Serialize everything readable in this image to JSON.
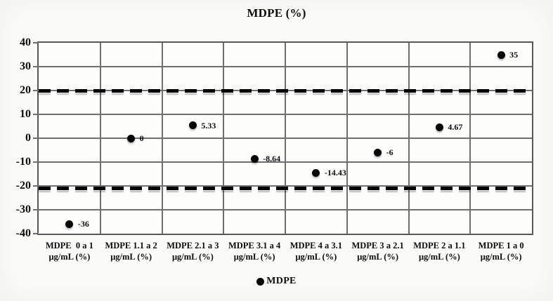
{
  "chart_data": {
    "type": "scatter",
    "title": "MDPE (%)",
    "legend": "MDPE",
    "legend_position": "bottom-center",
    "grid": true,
    "xlabel": "",
    "ylabel": "",
    "ylim": [
      -40,
      40
    ],
    "ytick_step": 10,
    "yticks": [
      40,
      30,
      20,
      10,
      0,
      -10,
      -20,
      -30,
      -40
    ],
    "categories": [
      {
        "line1": "MDPE  0 a 1",
        "line2": "μg/mL (%)"
      },
      {
        "line1": "MDPE 1.1 a 2",
        "line2": "μg/mL (%)"
      },
      {
        "line1": "MDPE 2.1 a 3",
        "line2": "μg/mL (%)"
      },
      {
        "line1": "MDPE 3.1 a 4",
        "line2": "μg/mL (%)"
      },
      {
        "line1": "MDPE 4 a 3.1",
        "line2": "μg/mL (%)"
      },
      {
        "line1": "MDPE 3 a 2.1",
        "line2": "μg/mL (%)"
      },
      {
        "line1": "MDPE 2 a 1.1",
        "line2": "μg/mL (%)"
      },
      {
        "line1": "MDPE 1 a 0",
        "line2": "μg/mL (%)"
      }
    ],
    "series": [
      {
        "name": "MDPE",
        "values": [
          -36,
          0,
          5.33,
          -8.64,
          -14.43,
          -6,
          4.67,
          35
        ],
        "point_labels": [
          "-36",
          "0",
          "5.33",
          "-8.64",
          "-14.43",
          "-6",
          "4.67",
          "35"
        ]
      }
    ],
    "limit_lines": {
      "upper": 20,
      "lower": -21,
      "style": "dashed",
      "color": "#050505"
    },
    "colors": {
      "point": "#060606",
      "grid": "#6f6f6f",
      "plot_border": "#585858",
      "text": "#0d0d0d",
      "plot_bg": "#fdfdfc",
      "page_bg": "#fbfbf9"
    }
  }
}
